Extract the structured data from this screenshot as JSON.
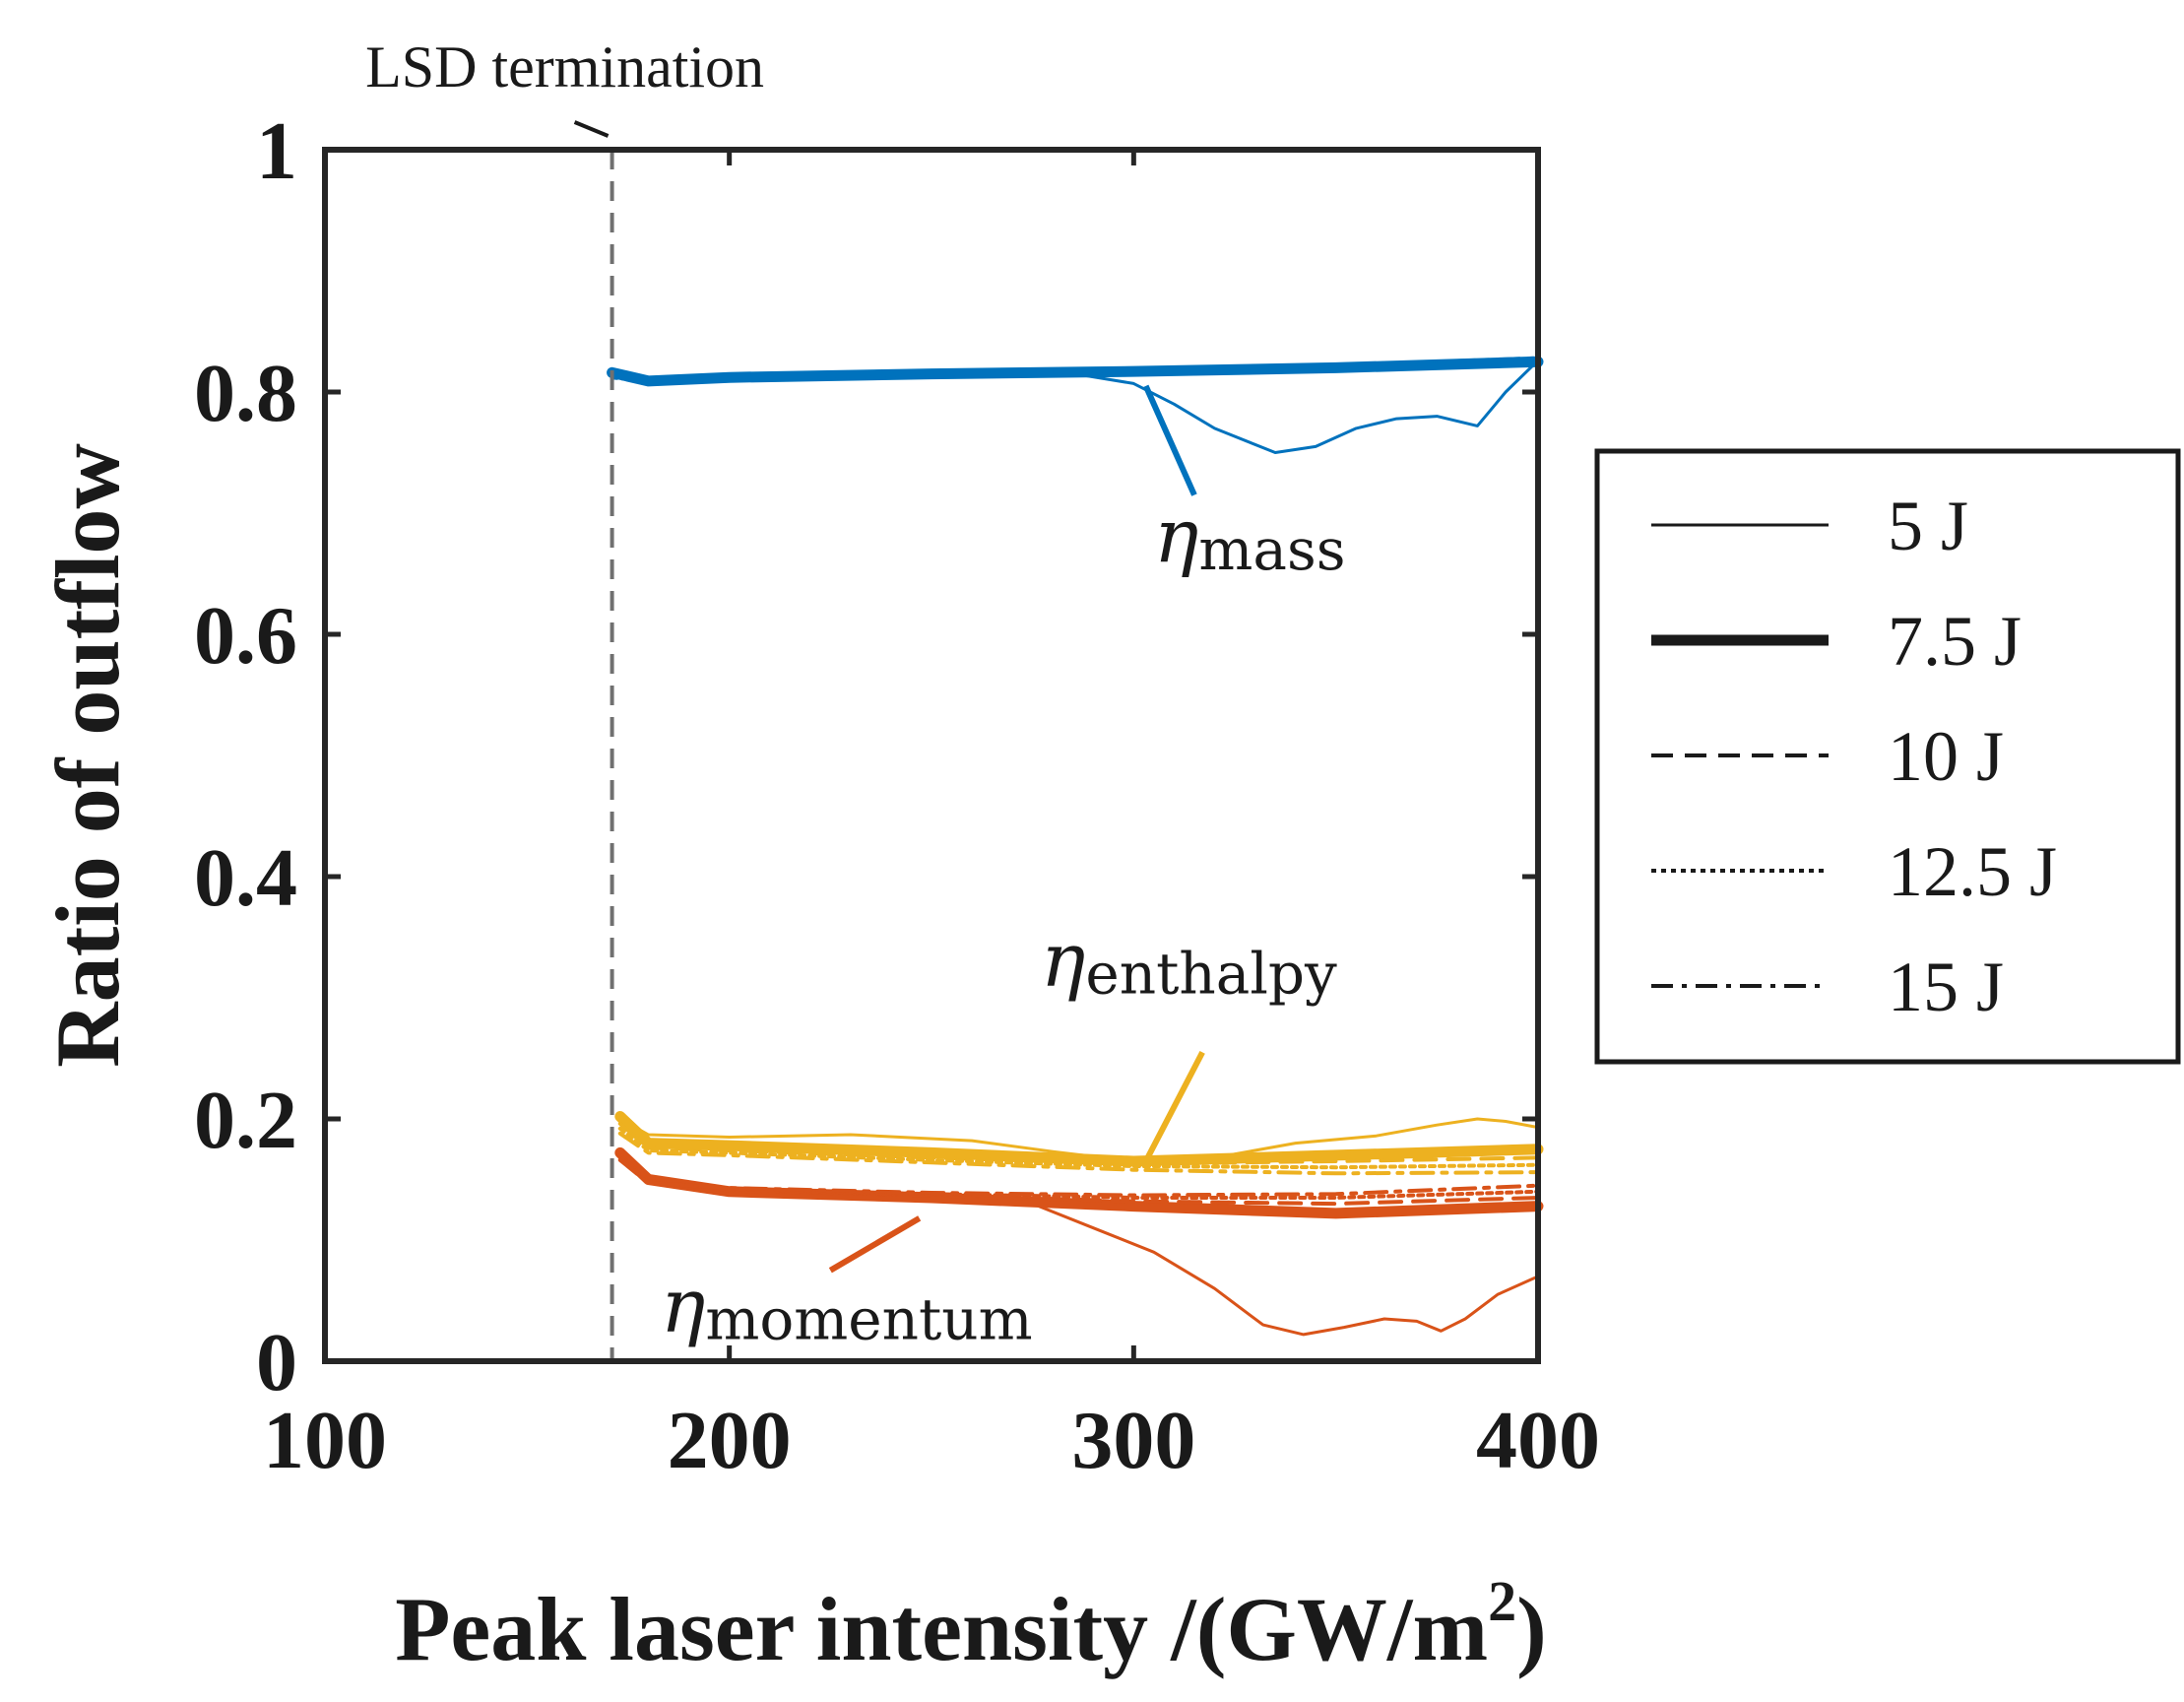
{
  "chart_data": {
    "type": "line",
    "xlabel": "Peak laser intensity /(GW/m",
    "xlabel_sup": "2",
    "xlabel_end": ")",
    "ylabel": "Ratio of outflow",
    "xlim": [
      100,
      400
    ],
    "ylim": [
      0,
      1
    ],
    "x_ticks": [
      100,
      200,
      300,
      400
    ],
    "y_ticks": [
      0,
      0.2,
      0.4,
      0.6,
      0.8,
      1
    ],
    "y_tick_labels": [
      "0",
      "0.2",
      "0.4",
      "0.6",
      "0.8",
      "1"
    ],
    "x_tick_labels": [
      "100",
      "200",
      "300",
      "400"
    ],
    "colors": {
      "mass": "#0072bd",
      "enthalpy": "#edb120",
      "momentum": "#d95319"
    },
    "vline": {
      "x": 171,
      "label": "LSD termination"
    },
    "legend": {
      "placement": "right",
      "entries": [
        {
          "label": "5 J",
          "style": "solid-thin"
        },
        {
          "label": "7.5 J",
          "style": "solid-thick"
        },
        {
          "label": "10 J",
          "style": "dashed"
        },
        {
          "label": "12.5 J",
          "style": "dotted"
        },
        {
          "label": "15 J",
          "style": "dashdot"
        }
      ]
    },
    "annotations": [
      {
        "group": "mass",
        "symbol": "η",
        "sub": "mass",
        "text_x": 305,
        "text_y": 0.66,
        "arrow_from": [
          315,
          0.715
        ],
        "arrow_to": [
          303,
          0.805
        ]
      },
      {
        "group": "enthalpy",
        "symbol": "η",
        "sub": "enthalpy",
        "text_x": 277,
        "text_y": 0.31,
        "arrow_from": [
          317,
          0.255
        ],
        "arrow_to": [
          303,
          0.165
        ]
      },
      {
        "group": "momentum",
        "symbol": "η",
        "sub": "momentum",
        "text_x": 183,
        "text_y": 0.025,
        "arrow_from": [
          225,
          0.075
        ],
        "arrow_to": [
          247,
          0.118
        ]
      }
    ],
    "series": [
      {
        "group": "mass",
        "energy": "5 J",
        "style": "solid-thin",
        "x": [
          171,
          180,
          200,
          250,
          280,
          300,
          310,
          320,
          335,
          345,
          355,
          365,
          375,
          385,
          392,
          400
        ],
        "y": [
          0.818,
          0.812,
          0.813,
          0.816,
          0.818,
          0.807,
          0.79,
          0.77,
          0.75,
          0.755,
          0.77,
          0.778,
          0.78,
          0.772,
          0.8,
          0.826
        ]
      },
      {
        "group": "mass",
        "energy": "7.5 J",
        "style": "solid-thick",
        "x": [
          171,
          180,
          200,
          250,
          300,
          350,
          400
        ],
        "y": [
          0.816,
          0.809,
          0.812,
          0.815,
          0.817,
          0.82,
          0.825
        ]
      },
      {
        "group": "mass",
        "energy": "10 J",
        "style": "dashed",
        "x": [
          171,
          180,
          200,
          250,
          300,
          350,
          400
        ],
        "y": [
          0.814,
          0.81,
          0.811,
          0.814,
          0.818,
          0.821,
          0.826
        ]
      },
      {
        "group": "mass",
        "energy": "12.5 J",
        "style": "dotted",
        "x": [
          171,
          180,
          200,
          250,
          300,
          350,
          400
        ],
        "y": [
          0.812,
          0.809,
          0.81,
          0.813,
          0.817,
          0.82,
          0.827
        ]
      },
      {
        "group": "mass",
        "energy": "15 J",
        "style": "dashdot",
        "x": [
          171,
          180,
          200,
          250,
          300,
          350,
          400
        ],
        "y": [
          0.815,
          0.811,
          0.812,
          0.815,
          0.818,
          0.822,
          0.828
        ]
      },
      {
        "group": "enthalpy",
        "energy": "5 J",
        "style": "solid-thin",
        "x": [
          173,
          180,
          200,
          230,
          260,
          280,
          300,
          320,
          340,
          360,
          375,
          385,
          392,
          400
        ],
        "y": [
          0.2,
          0.187,
          0.185,
          0.187,
          0.182,
          0.173,
          0.165,
          0.168,
          0.18,
          0.186,
          0.195,
          0.2,
          0.198,
          0.193
        ]
      },
      {
        "group": "enthalpy",
        "energy": "7.5 J",
        "style": "solid-thick",
        "x": [
          173,
          180,
          200,
          250,
          300,
          350,
          400
        ],
        "y": [
          0.202,
          0.18,
          0.178,
          0.172,
          0.165,
          0.17,
          0.175
        ]
      },
      {
        "group": "enthalpy",
        "energy": "10 J",
        "style": "dashed",
        "x": [
          173,
          180,
          200,
          250,
          300,
          350,
          400
        ],
        "y": [
          0.196,
          0.176,
          0.174,
          0.168,
          0.163,
          0.165,
          0.168
        ]
      },
      {
        "group": "enthalpy",
        "energy": "12.5 J",
        "style": "dotted",
        "x": [
          173,
          180,
          200,
          250,
          300,
          350,
          400
        ],
        "y": [
          0.192,
          0.174,
          0.172,
          0.166,
          0.161,
          0.16,
          0.162
        ]
      },
      {
        "group": "enthalpy",
        "energy": "15 J",
        "style": "dashdot",
        "x": [
          173,
          180,
          200,
          250,
          300,
          350,
          400
        ],
        "y": [
          0.188,
          0.172,
          0.17,
          0.164,
          0.158,
          0.155,
          0.156
        ]
      },
      {
        "group": "momentum",
        "energy": "5 J",
        "style": "solid-thin",
        "x": [
          173,
          178,
          185,
          200,
          230,
          260,
          275,
          290,
          305,
          320,
          332,
          342,
          352,
          362,
          370,
          376,
          382,
          390,
          400
        ],
        "y": [
          0.175,
          0.152,
          0.145,
          0.14,
          0.138,
          0.136,
          0.13,
          0.11,
          0.09,
          0.06,
          0.03,
          0.022,
          0.028,
          0.035,
          0.033,
          0.025,
          0.035,
          0.055,
          0.07
        ]
      },
      {
        "group": "momentum",
        "energy": "7.5 J",
        "style": "solid-thick",
        "x": [
          173,
          180,
          200,
          250,
          300,
          350,
          400
        ],
        "y": [
          0.172,
          0.15,
          0.14,
          0.135,
          0.128,
          0.122,
          0.128
        ]
      },
      {
        "group": "momentum",
        "energy": "10 J",
        "style": "dashed",
        "x": [
          173,
          180,
          200,
          250,
          300,
          350,
          400
        ],
        "y": [
          0.17,
          0.149,
          0.141,
          0.137,
          0.132,
          0.13,
          0.135
        ]
      },
      {
        "group": "momentum",
        "energy": "12.5 J",
        "style": "dotted",
        "x": [
          173,
          180,
          200,
          250,
          300,
          350,
          400
        ],
        "y": [
          0.168,
          0.148,
          0.142,
          0.138,
          0.135,
          0.135,
          0.14
        ]
      },
      {
        "group": "momentum",
        "energy": "15 J",
        "style": "dashdot",
        "x": [
          173,
          180,
          200,
          250,
          300,
          350,
          400
        ],
        "y": [
          0.166,
          0.147,
          0.143,
          0.139,
          0.137,
          0.138,
          0.145
        ]
      }
    ]
  }
}
